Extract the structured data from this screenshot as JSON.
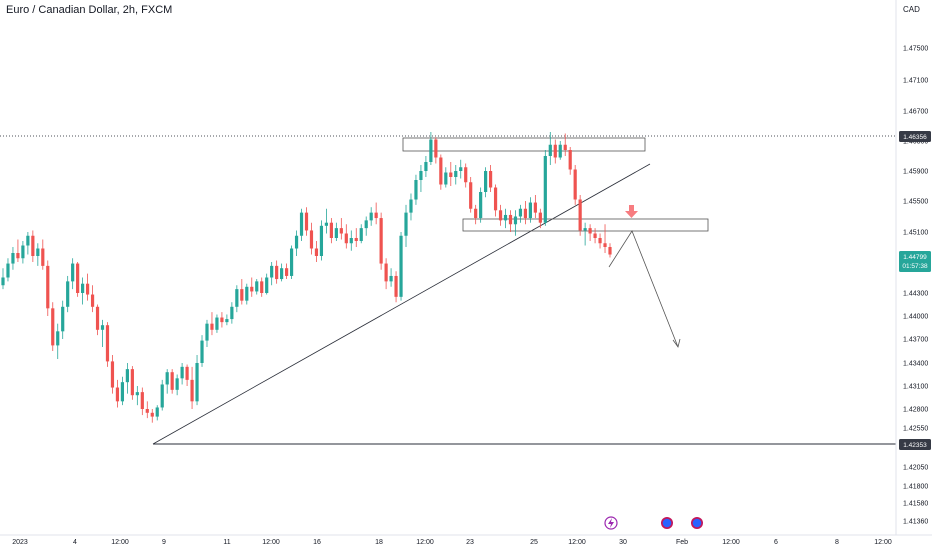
{
  "header": {
    "title": "Euro / Canadian Dollar, 2h, FXCM",
    "currency": "CAD"
  },
  "colors": {
    "up": "#26a69a",
    "down": "#ef5350",
    "drawing": "#2a2e39",
    "price_badge": "#26a69a",
    "level_badge": "#363a45",
    "arrow": "#f23645"
  },
  "chart_data": {
    "type": "candlestick",
    "title": "Euro / Canadian Dollar, 2h, FXCM",
    "y_axis": {
      "unit": "CAD",
      "range": [
        1.4115,
        1.4795
      ],
      "ticks": [
        "1.47500",
        "1.47100",
        "1.46700",
        "1.46300",
        "1.45900",
        "1.45500",
        "1.45100",
        "1.44700",
        "1.44300",
        "1.44000",
        "1.43700",
        "1.43400",
        "1.43100",
        "1.42800",
        "1.42550",
        "1.42300",
        "1.42050",
        "1.41800",
        "1.41580",
        "1.41360"
      ]
    },
    "x_axis": {
      "ticks": [
        "2023",
        "4",
        "12:00",
        "9",
        "11",
        "12:00",
        "16",
        "18",
        "12:00",
        "23",
        "25",
        "12:00",
        "30",
        "Feb",
        "6",
        "12:00",
        "8",
        "12:00"
      ]
    },
    "price_labels": {
      "resistance": "1.46356",
      "current_price": "1.44799",
      "countdown": "01:57:38",
      "support": "1.42353"
    },
    "series": [
      {
        "values": [
          [
            1.444,
            1.4462,
            1.4435,
            1.445
          ],
          [
            1.445,
            1.4475,
            1.4445,
            1.4468
          ],
          [
            1.4468,
            1.449,
            1.446,
            1.4482
          ],
          [
            1.4482,
            1.45,
            1.447,
            1.4475
          ],
          [
            1.4475,
            1.4498,
            1.4468,
            1.4492
          ],
          [
            1.4492,
            1.451,
            1.448,
            1.4505
          ],
          [
            1.4505,
            1.4512,
            1.447,
            1.4478
          ],
          [
            1.4478,
            1.4495,
            1.4465,
            1.4488
          ],
          [
            1.4488,
            1.45,
            1.446,
            1.4465
          ],
          [
            1.4465,
            1.4472,
            1.44,
            1.441
          ],
          [
            1.441,
            1.4418,
            1.4355,
            1.4362
          ],
          [
            1.4362,
            1.439,
            1.4345,
            1.438
          ],
          [
            1.438,
            1.442,
            1.437,
            1.4412
          ],
          [
            1.4412,
            1.4452,
            1.4405,
            1.4445
          ],
          [
            1.4445,
            1.4475,
            1.4435,
            1.4468
          ],
          [
            1.4468,
            1.447,
            1.4425,
            1.443
          ],
          [
            1.443,
            1.445,
            1.4415,
            1.4442
          ],
          [
            1.4442,
            1.4455,
            1.442,
            1.4428
          ],
          [
            1.4428,
            1.444,
            1.4405,
            1.4412
          ],
          [
            1.4412,
            1.4415,
            1.4375,
            1.4382
          ],
          [
            1.4382,
            1.4395,
            1.436,
            1.4388
          ],
          [
            1.4388,
            1.4392,
            1.4335,
            1.4342
          ],
          [
            1.4342,
            1.435,
            1.43,
            1.4308
          ],
          [
            1.4308,
            1.4318,
            1.4282,
            1.429
          ],
          [
            1.429,
            1.4322,
            1.4285,
            1.4315
          ],
          [
            1.4315,
            1.434,
            1.43,
            1.4332
          ],
          [
            1.4332,
            1.4336,
            1.4292,
            1.4298
          ],
          [
            1.4298,
            1.431,
            1.4285,
            1.4302
          ],
          [
            1.4302,
            1.4308,
            1.4272,
            1.428
          ],
          [
            1.428,
            1.429,
            1.4268,
            1.4275
          ],
          [
            1.4275,
            1.428,
            1.4262,
            1.427
          ],
          [
            1.427,
            1.4285,
            1.4265,
            1.4282
          ],
          [
            1.4282,
            1.4318,
            1.4278,
            1.4312
          ],
          [
            1.4312,
            1.4332,
            1.43,
            1.4328
          ],
          [
            1.4328,
            1.4332,
            1.43,
            1.4305
          ],
          [
            1.4305,
            1.4325,
            1.4298,
            1.432
          ],
          [
            1.432,
            1.434,
            1.4312,
            1.4335
          ],
          [
            1.4335,
            1.4338,
            1.431,
            1.4318
          ],
          [
            1.4318,
            1.4335,
            1.428,
            1.429
          ],
          [
            1.429,
            1.435,
            1.4285,
            1.434
          ],
          [
            1.434,
            1.4375,
            1.4335,
            1.4368
          ],
          [
            1.4368,
            1.4395,
            1.436,
            1.439
          ],
          [
            1.439,
            1.4405,
            1.4375,
            1.4382
          ],
          [
            1.4382,
            1.4402,
            1.4378,
            1.4398
          ],
          [
            1.4398,
            1.4405,
            1.4385,
            1.4392
          ],
          [
            1.4392,
            1.4402,
            1.4388,
            1.4396
          ],
          [
            1.4396,
            1.4418,
            1.439,
            1.4412
          ],
          [
            1.4412,
            1.444,
            1.4405,
            1.4435
          ],
          [
            1.4435,
            1.4448,
            1.4415,
            1.442
          ],
          [
            1.442,
            1.4442,
            1.4415,
            1.4438
          ],
          [
            1.4438,
            1.445,
            1.4425,
            1.4432
          ],
          [
            1.4432,
            1.4448,
            1.4428,
            1.4445
          ],
          [
            1.4445,
            1.445,
            1.4425,
            1.443
          ],
          [
            1.443,
            1.4455,
            1.4428,
            1.445
          ],
          [
            1.445,
            1.447,
            1.444,
            1.4465
          ],
          [
            1.4465,
            1.4472,
            1.4442,
            1.4448
          ],
          [
            1.4448,
            1.4468,
            1.4445,
            1.4462
          ],
          [
            1.4462,
            1.4468,
            1.4448,
            1.4452
          ],
          [
            1.4452,
            1.4492,
            1.4448,
            1.4488
          ],
          [
            1.4488,
            1.4512,
            1.4478,
            1.4505
          ],
          [
            1.4505,
            1.454,
            1.4498,
            1.4535
          ],
          [
            1.4535,
            1.4542,
            1.4505,
            1.4512
          ],
          [
            1.4512,
            1.4522,
            1.448,
            1.4488
          ],
          [
            1.4488,
            1.4498,
            1.447,
            1.4478
          ],
          [
            1.4478,
            1.4525,
            1.4472,
            1.4518
          ],
          [
            1.4518,
            1.454,
            1.4508,
            1.4522
          ],
          [
            1.4522,
            1.4528,
            1.4495,
            1.4502
          ],
          [
            1.4502,
            1.4522,
            1.4498,
            1.4515
          ],
          [
            1.4515,
            1.4528,
            1.45,
            1.4508
          ],
          [
            1.4508,
            1.452,
            1.4488,
            1.4495
          ],
          [
            1.4495,
            1.4512,
            1.4485,
            1.4502
          ],
          [
            1.4502,
            1.4515,
            1.449,
            1.4498
          ],
          [
            1.4498,
            1.452,
            1.4495,
            1.4515
          ],
          [
            1.4515,
            1.453,
            1.4505,
            1.4525
          ],
          [
            1.4525,
            1.4542,
            1.4518,
            1.4535
          ],
          [
            1.4535,
            1.4548,
            1.452,
            1.4528
          ],
          [
            1.4528,
            1.4535,
            1.446,
            1.4468
          ],
          [
            1.4468,
            1.4475,
            1.4435,
            1.4445
          ],
          [
            1.4445,
            1.4462,
            1.4438,
            1.4452
          ],
          [
            1.4452,
            1.4458,
            1.4418,
            1.4425
          ],
          [
            1.4425,
            1.451,
            1.442,
            1.4505
          ],
          [
            1.4505,
            1.4545,
            1.449,
            1.4535
          ],
          [
            1.4535,
            1.456,
            1.4525,
            1.4552
          ],
          [
            1.4552,
            1.4585,
            1.4545,
            1.4578
          ],
          [
            1.4578,
            1.4598,
            1.4562,
            1.459
          ],
          [
            1.459,
            1.461,
            1.4582,
            1.4602
          ],
          [
            1.4602,
            1.4642,
            1.4598,
            1.4632
          ],
          [
            1.4632,
            1.4635,
            1.46,
            1.4608
          ],
          [
            1.4608,
            1.4612,
            1.4565,
            1.4572
          ],
          [
            1.4572,
            1.4595,
            1.4568,
            1.4588
          ],
          [
            1.4588,
            1.4602,
            1.457,
            1.4582
          ],
          [
            1.4582,
            1.4598,
            1.4572,
            1.459
          ],
          [
            1.459,
            1.4605,
            1.458,
            1.4595
          ],
          [
            1.4595,
            1.46,
            1.4568,
            1.4575
          ],
          [
            1.4575,
            1.4582,
            1.4535,
            1.454
          ],
          [
            1.454,
            1.4545,
            1.452,
            1.4528
          ],
          [
            1.4528,
            1.4568,
            1.4522,
            1.4562
          ],
          [
            1.4562,
            1.4595,
            1.4555,
            1.459
          ],
          [
            1.459,
            1.4598,
            1.4562,
            1.4568
          ],
          [
            1.4568,
            1.4572,
            1.453,
            1.4538
          ],
          [
            1.4538,
            1.4545,
            1.4518,
            1.4525
          ],
          [
            1.4525,
            1.454,
            1.4515,
            1.4532
          ],
          [
            1.4532,
            1.4538,
            1.451,
            1.452
          ],
          [
            1.452,
            1.4538,
            1.4505,
            1.453
          ],
          [
            1.453,
            1.4545,
            1.4522,
            1.454
          ],
          [
            1.454,
            1.455,
            1.452,
            1.4528
          ],
          [
            1.4528,
            1.4555,
            1.4522,
            1.4548
          ],
          [
            1.4548,
            1.4558,
            1.4528,
            1.4535
          ],
          [
            1.4535,
            1.454,
            1.4515,
            1.4522
          ],
          [
            1.4522,
            1.4618,
            1.4518,
            1.461
          ],
          [
            1.461,
            1.4642,
            1.4598,
            1.4625
          ],
          [
            1.4625,
            1.4632,
            1.46,
            1.4608
          ],
          [
            1.4608,
            1.463,
            1.4605,
            1.4625
          ],
          [
            1.4625,
            1.464,
            1.461,
            1.4618
          ],
          [
            1.4618,
            1.4622,
            1.4585,
            1.4592
          ],
          [
            1.4592,
            1.4598,
            1.4545,
            1.4552
          ],
          [
            1.4552,
            1.4558,
            1.4505,
            1.4512
          ],
          [
            1.4512,
            1.4522,
            1.4492,
            1.4515
          ],
          [
            1.4515,
            1.452,
            1.4498,
            1.4508
          ],
          [
            1.4508,
            1.4515,
            1.4495,
            1.4502
          ],
          [
            1.4502,
            1.4508,
            1.4488,
            1.4495
          ],
          [
            1.4495,
            1.452,
            1.4482,
            1.449
          ],
          [
            1.449,
            1.4495,
            1.4476,
            1.448
          ]
        ]
      }
    ]
  }
}
